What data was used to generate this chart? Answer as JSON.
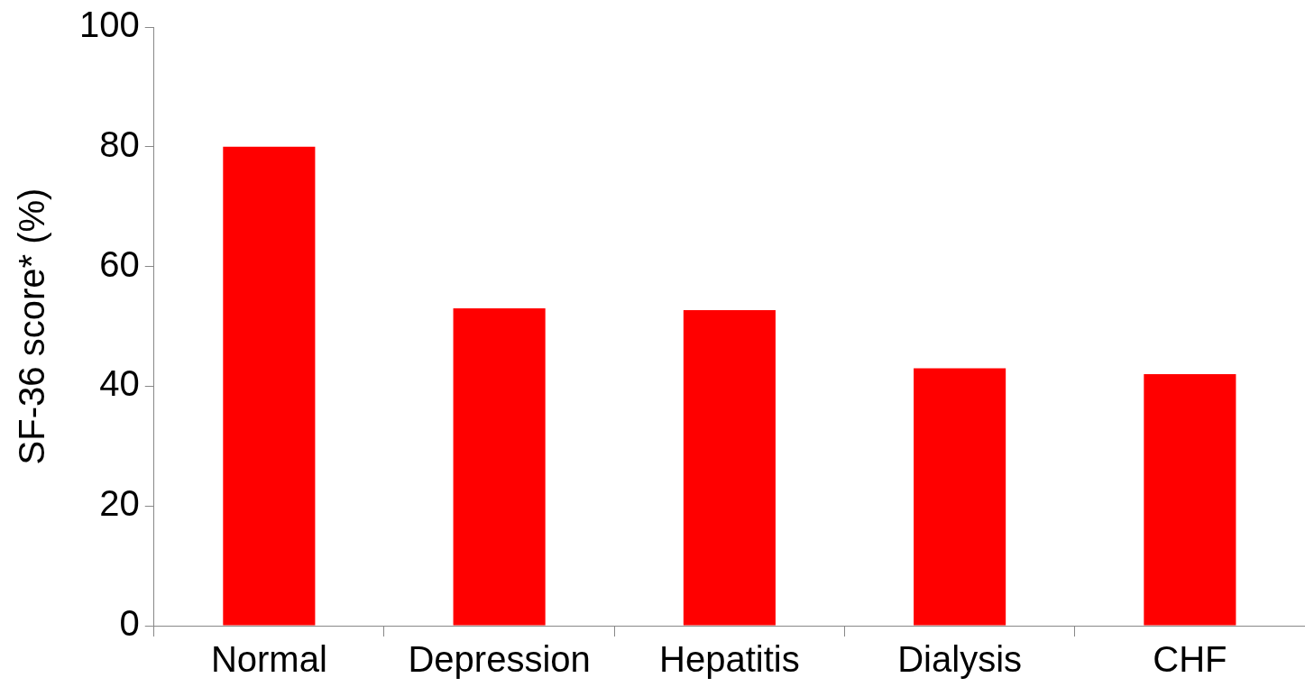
{
  "chart_data": {
    "type": "bar",
    "ylabel": "SF-36 score* (%)",
    "categories": [
      "Normal",
      "Depression",
      "Hepatitis",
      "Dialysis",
      "CHF"
    ],
    "values": [
      80,
      53,
      52.7,
      43,
      42
    ],
    "color": "#ff0000",
    "ylim": [
      0,
      100
    ],
    "yticks": [
      0,
      20,
      40,
      60,
      80,
      100
    ],
    "grid": false,
    "legend": false
  }
}
